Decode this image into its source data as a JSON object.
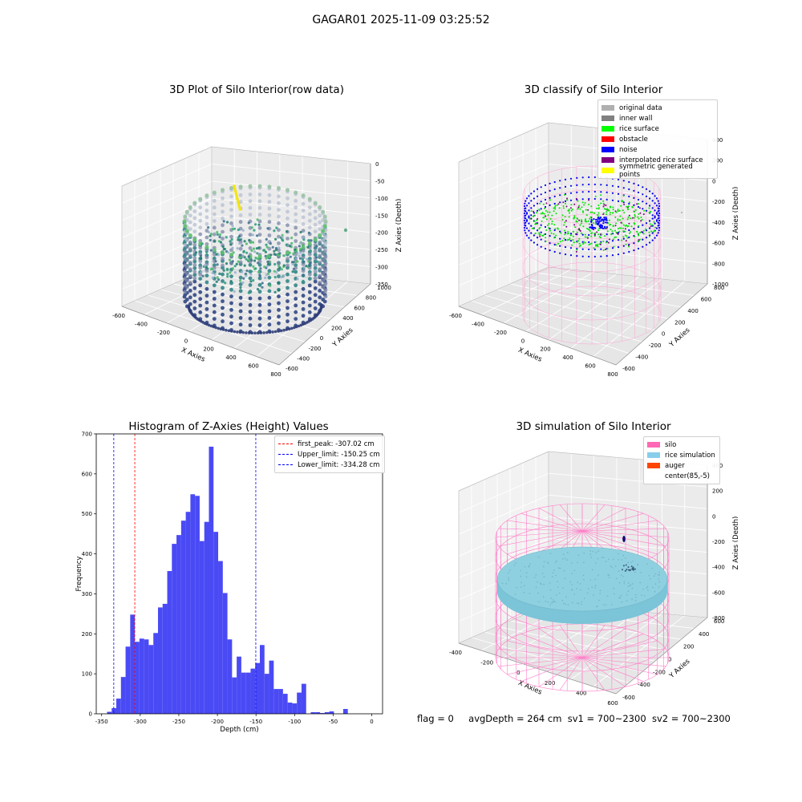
{
  "suptitle": "GAGAR01 2025-11-09 03:25:52",
  "panels": {
    "raw": {
      "title": "3D Plot of Silo Interior(row data)",
      "xlabel": "X Axies",
      "ylabel": "Y Axies",
      "zlabel": "Z Axies (Depth)",
      "xticks": [
        "-600",
        "-400",
        "-200",
        "0",
        "200",
        "400",
        "600",
        "800"
      ],
      "yticks": [
        "-600",
        "-400",
        "-200",
        "0",
        "200",
        "400",
        "600",
        "800",
        "1000"
      ],
      "zticks": [
        "0",
        "-50",
        "-100",
        "-150",
        "-200",
        "-250",
        "-300",
        "-350"
      ]
    },
    "classify": {
      "title": "3D classify of Silo Interior",
      "xlabel": "X Axies",
      "ylabel": "Y Axies",
      "zlabel": "Z Axies (Depth)",
      "xticks": [
        "-600",
        "-400",
        "-200",
        "0",
        "200",
        "400",
        "600",
        "800"
      ],
      "yticks": [
        "-600",
        "-400",
        "-200",
        "0",
        "200",
        "400",
        "600",
        "800"
      ],
      "zticks": [
        "400",
        "200",
        "0",
        "-200",
        "-400",
        "-600",
        "-800",
        "-1000"
      ],
      "legend": [
        {
          "label": "original data",
          "color": "#b0b0b0"
        },
        {
          "label": "inner wall",
          "color": "#808080"
        },
        {
          "label": "rice surface",
          "color": "#00ff00"
        },
        {
          "label": "obstacle",
          "color": "#ff0000"
        },
        {
          "label": "noise",
          "color": "#0000ff"
        },
        {
          "label": "interpolated rice surface",
          "color": "#800080"
        },
        {
          "label": "symmetric generated points",
          "color": "#ffff00"
        }
      ]
    },
    "simulation": {
      "title": "3D simulation of Silo Interior",
      "xlabel": "X Axies",
      "ylabel": "Y Axies",
      "zlabel": "Z Axies (Depth)",
      "xticks": [
        "-400",
        "-200",
        "0",
        "200",
        "400",
        "600"
      ],
      "yticks": [
        "-600",
        "-400",
        "-200",
        "0",
        "200",
        "400",
        "600"
      ],
      "zticks": [
        "400",
        "200",
        "0",
        "-200",
        "-400",
        "-600",
        "-800"
      ],
      "legend": [
        {
          "label": "silo",
          "color": "#ff69b4"
        },
        {
          "label": "rice simulation",
          "color": "#87ceeb"
        },
        {
          "label": "auger",
          "color": "#ff4500"
        },
        {
          "label": "center(85,-5)",
          "color": "#ffffff"
        }
      ]
    }
  },
  "chart_data": {
    "type": "bar",
    "title": "Histogram of Z-Axies (Height) Values",
    "xlabel": "Depth (cm)",
    "ylabel": "Frequency",
    "xlim": [
      -350,
      0
    ],
    "ylim": [
      0,
      700
    ],
    "xticks": [
      -350,
      -300,
      -250,
      -200,
      -150,
      -100,
      -50,
      0
    ],
    "yticks": [
      0,
      100,
      200,
      300,
      400,
      500,
      600,
      700
    ],
    "bins": [
      {
        "x0": -343,
        "x1": -337,
        "value": 5
      },
      {
        "x0": -337,
        "x1": -331,
        "value": 14
      },
      {
        "x0": -331,
        "x1": -325,
        "value": 38
      },
      {
        "x0": -325,
        "x1": -319,
        "value": 92
      },
      {
        "x0": -319,
        "x1": -313,
        "value": 168
      },
      {
        "x0": -313,
        "x1": -307,
        "value": 248
      },
      {
        "x0": -307,
        "x1": -301,
        "value": 180
      },
      {
        "x0": -301,
        "x1": -295,
        "value": 188
      },
      {
        "x0": -295,
        "x1": -289,
        "value": 186
      },
      {
        "x0": -289,
        "x1": -283,
        "value": 172
      },
      {
        "x0": -283,
        "x1": -277,
        "value": 202
      },
      {
        "x0": -277,
        "x1": -271,
        "value": 266
      },
      {
        "x0": -271,
        "x1": -265,
        "value": 275
      },
      {
        "x0": -265,
        "x1": -259,
        "value": 357
      },
      {
        "x0": -259,
        "x1": -253,
        "value": 425
      },
      {
        "x0": -253,
        "x1": -247,
        "value": 447
      },
      {
        "x0": -247,
        "x1": -241,
        "value": 483
      },
      {
        "x0": -241,
        "x1": -235,
        "value": 505
      },
      {
        "x0": -235,
        "x1": -229,
        "value": 549
      },
      {
        "x0": -229,
        "x1": -223,
        "value": 545
      },
      {
        "x0": -223,
        "x1": -217,
        "value": 432
      },
      {
        "x0": -217,
        "x1": -211,
        "value": 480
      },
      {
        "x0": -211,
        "x1": -205,
        "value": 668
      },
      {
        "x0": -205,
        "x1": -199,
        "value": 455
      },
      {
        "x0": -199,
        "x1": -193,
        "value": 382
      },
      {
        "x0": -193,
        "x1": -187,
        "value": 302
      },
      {
        "x0": -187,
        "x1": -181,
        "value": 186
      },
      {
        "x0": -181,
        "x1": -175,
        "value": 91
      },
      {
        "x0": -175,
        "x1": -169,
        "value": 143
      },
      {
        "x0": -169,
        "x1": -163,
        "value": 103
      },
      {
        "x0": -163,
        "x1": -157,
        "value": 103
      },
      {
        "x0": -157,
        "x1": -151,
        "value": 113
      },
      {
        "x0": -151,
        "x1": -145,
        "value": 127
      },
      {
        "x0": -145,
        "x1": -139,
        "value": 172
      },
      {
        "x0": -139,
        "x1": -133,
        "value": 100
      },
      {
        "x0": -133,
        "x1": -127,
        "value": 133
      },
      {
        "x0": -127,
        "x1": -121,
        "value": 62
      },
      {
        "x0": -121,
        "x1": -115,
        "value": 62
      },
      {
        "x0": -115,
        "x1": -109,
        "value": 50
      },
      {
        "x0": -109,
        "x1": -103,
        "value": 28
      },
      {
        "x0": -103,
        "x1": -97,
        "value": 26
      },
      {
        "x0": -97,
        "x1": -91,
        "value": 53
      },
      {
        "x0": -91,
        "x1": -85,
        "value": 75
      },
      {
        "x0": -85,
        "x1": -79,
        "value": 0
      },
      {
        "x0": -79,
        "x1": -73,
        "value": 4
      },
      {
        "x0": -73,
        "x1": -67,
        "value": 4
      },
      {
        "x0": -67,
        "x1": -61,
        "value": 2
      },
      {
        "x0": -61,
        "x1": -55,
        "value": 4
      },
      {
        "x0": -55,
        "x1": -49,
        "value": 6
      },
      {
        "x0": -49,
        "x1": -43,
        "value": 0
      },
      {
        "x0": -43,
        "x1": -37,
        "value": 0
      },
      {
        "x0": -37,
        "x1": -31,
        "value": 12
      }
    ],
    "bar_color": "#4a4af5",
    "vlines": [
      {
        "label": "first_peak: -307.02 cm",
        "value": -307.02,
        "color": "#ff0000"
      },
      {
        "label": "Upper_limit: -150.25 cm",
        "value": -150.25,
        "color": "#0000ff"
      },
      {
        "label": "Lower_limit: -334.28 cm",
        "value": -334.28,
        "color": "#0000ff"
      }
    ],
    "legend_position": "top-right"
  },
  "status": {
    "flag": "flag = 0",
    "avg": "avgDepth = 264 cm",
    "sv1": "sv1 = 700~2300",
    "sv2": "sv2 = 700~2300"
  }
}
